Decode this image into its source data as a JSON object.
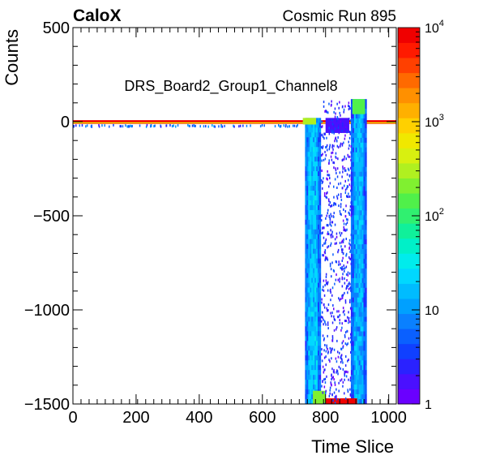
{
  "chart_data": {
    "type": "heatmap",
    "experiment_label": "CaloX",
    "run_label": "Cosmic Run 895",
    "histogram_title": "DRS_Board2_Group1_Channel8",
    "xlabel": "Time Slice",
    "ylabel": "Counts",
    "xlim": [
      0,
      1024
    ],
    "ylim": [
      -1500,
      500
    ],
    "x_ticks": [
      {
        "value": 0,
        "label": "0"
      },
      {
        "value": 200,
        "label": "200"
      },
      {
        "value": 400,
        "label": "400"
      },
      {
        "value": 600,
        "label": "600"
      },
      {
        "value": 800,
        "label": "800"
      },
      {
        "value": 1000,
        "label": "1000"
      }
    ],
    "y_ticks": [
      {
        "value": 500,
        "label": "500"
      },
      {
        "value": 0,
        "label": "0"
      },
      {
        "value": -500,
        "label": "−500"
      },
      {
        "value": -1000,
        "label": "−1000"
      },
      {
        "value": -1500,
        "label": "−1500"
      }
    ],
    "z_scale": "log",
    "zlim": [
      1,
      10000
    ],
    "z_ticks": [
      {
        "value": 1,
        "base": "1",
        "exp": ""
      },
      {
        "value": 10,
        "base": "10",
        "exp": ""
      },
      {
        "value": 100,
        "base": "10",
        "exp": "2"
      },
      {
        "value": 1000,
        "base": "10",
        "exp": "3"
      },
      {
        "value": 10000,
        "base": "10",
        "exp": "4"
      }
    ],
    "palette": [
      "#6a00ff",
      "#4a10ff",
      "#2a22ff",
      "#1040ff",
      "#0a60ff",
      "#0a80ff",
      "#00a0ff",
      "#00bcff",
      "#00d8ff",
      "#00ecec",
      "#00f0c8",
      "#10f09a",
      "#30f070",
      "#50f04a",
      "#80f030",
      "#b0f020",
      "#d8f010",
      "#f0e800",
      "#ffd000",
      "#ffb000",
      "#ff9000",
      "#ff6a00",
      "#ff4000",
      "#ff1a00",
      "#f00000"
    ],
    "regions": [
      {
        "name": "baseline",
        "x": [
          0,
          1024
        ],
        "y": [
          -12,
          8
        ],
        "z": 8000
      },
      {
        "name": "baseline-sparse-below",
        "x": [
          0,
          740
        ],
        "y": [
          -25,
          -12
        ],
        "z": 3
      },
      {
        "name": "falling-edge-band",
        "x": [
          735,
          785
        ],
        "y": [
          -1500,
          20
        ],
        "z": 15
      },
      {
        "name": "falling-edge-top",
        "x": [
          728,
          770
        ],
        "y": [
          -15,
          20
        ],
        "z": 300
      },
      {
        "name": "rising-edge-band",
        "x": [
          880,
          930
        ],
        "y": [
          -1500,
          120
        ],
        "z": 12
      },
      {
        "name": "rising-edge-top",
        "x": [
          885,
          925
        ],
        "y": [
          40,
          120
        ],
        "z": 150
      },
      {
        "name": "saturation-floor",
        "x": [
          760,
          900
        ],
        "y": [
          -1500,
          -1470
        ],
        "z": 8000
      },
      {
        "name": "floor-cluster",
        "x": [
          760,
          800
        ],
        "y": [
          -1500,
          -1430
        ],
        "z": 200
      },
      {
        "name": "overshoot-blob",
        "x": [
          800,
          875
        ],
        "y": [
          -60,
          20
        ],
        "z": 2
      },
      {
        "name": "scatter-between",
        "x": [
          785,
          880
        ],
        "y": [
          -1500,
          120
        ],
        "z": 1
      }
    ]
  }
}
